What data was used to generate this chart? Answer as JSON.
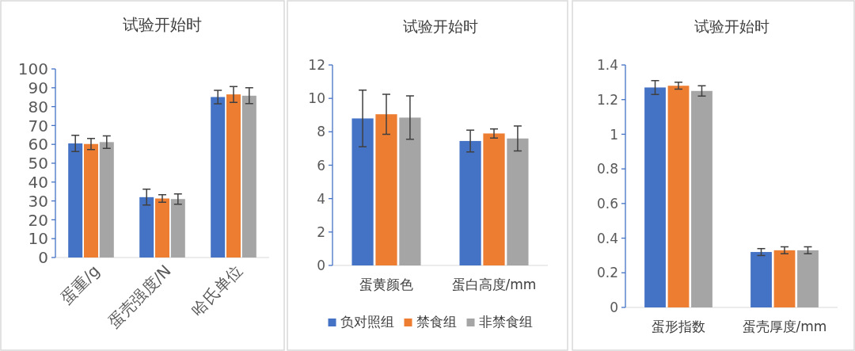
{
  "chart_data": [
    {
      "type": "bar",
      "title": "试验开始时",
      "categories": [
        "蛋重/g",
        "蛋壳强度/N",
        "哈氏单位"
      ],
      "ylim": [
        0,
        100
      ],
      "yticks": [
        0,
        10,
        20,
        30,
        40,
        50,
        60,
        70,
        80,
        90,
        100
      ],
      "grid": false,
      "legend": false,
      "series": [
        {
          "color": "#4472c4",
          "values": [
            60.5,
            32,
            85.1
          ],
          "errors": [
            4.3,
            4.2,
            3.6
          ]
        },
        {
          "color": "#ed7d31",
          "values": [
            60.2,
            31.3,
            86.5
          ],
          "errors": [
            2.9,
            2,
            4.2
          ]
        },
        {
          "color": "#a5a5a5",
          "values": [
            61.2,
            31,
            85.8
          ],
          "errors": [
            3.3,
            2.7,
            4.2
          ]
        }
      ]
    },
    {
      "type": "bar",
      "title": "试验开始时",
      "categories": [
        "蛋黄颜色",
        "蛋白高度/mm"
      ],
      "ylim": [
        0,
        12
      ],
      "yticks": [
        0,
        2,
        4,
        6,
        8,
        10,
        12
      ],
      "grid": false,
      "legend": "bottom",
      "series": [
        {
          "name": "负对照组",
          "color": "#4472c4",
          "values": [
            8.8,
            7.45
          ],
          "errors": [
            1.7,
            0.65
          ]
        },
        {
          "name": "禁食组",
          "color": "#ed7d31",
          "values": [
            9.05,
            7.9
          ],
          "errors": [
            1.2,
            0.27
          ]
        },
        {
          "name": "非禁食组",
          "color": "#a5a5a5",
          "values": [
            8.85,
            7.6
          ],
          "errors": [
            1.3,
            0.75
          ]
        }
      ]
    },
    {
      "type": "bar",
      "title": "试验开始时",
      "categories": [
        "蛋形指数",
        "蛋壳厚度/mm"
      ],
      "ylim": [
        0,
        1.4
      ],
      "yticks": [
        0,
        0.2,
        0.4,
        0.6,
        0.8,
        1,
        1.2,
        1.4
      ],
      "grid": false,
      "legend": false,
      "series": [
        {
          "color": "#4472c4",
          "values": [
            1.27,
            0.32
          ],
          "errors": [
            0.04,
            0.02
          ]
        },
        {
          "color": "#ed7d31",
          "values": [
            1.28,
            0.33
          ],
          "errors": [
            0.02,
            0.02
          ]
        },
        {
          "color": "#a5a5a5",
          "values": [
            1.25,
            0.33
          ],
          "errors": [
            0.03,
            0.02
          ]
        }
      ]
    }
  ]
}
